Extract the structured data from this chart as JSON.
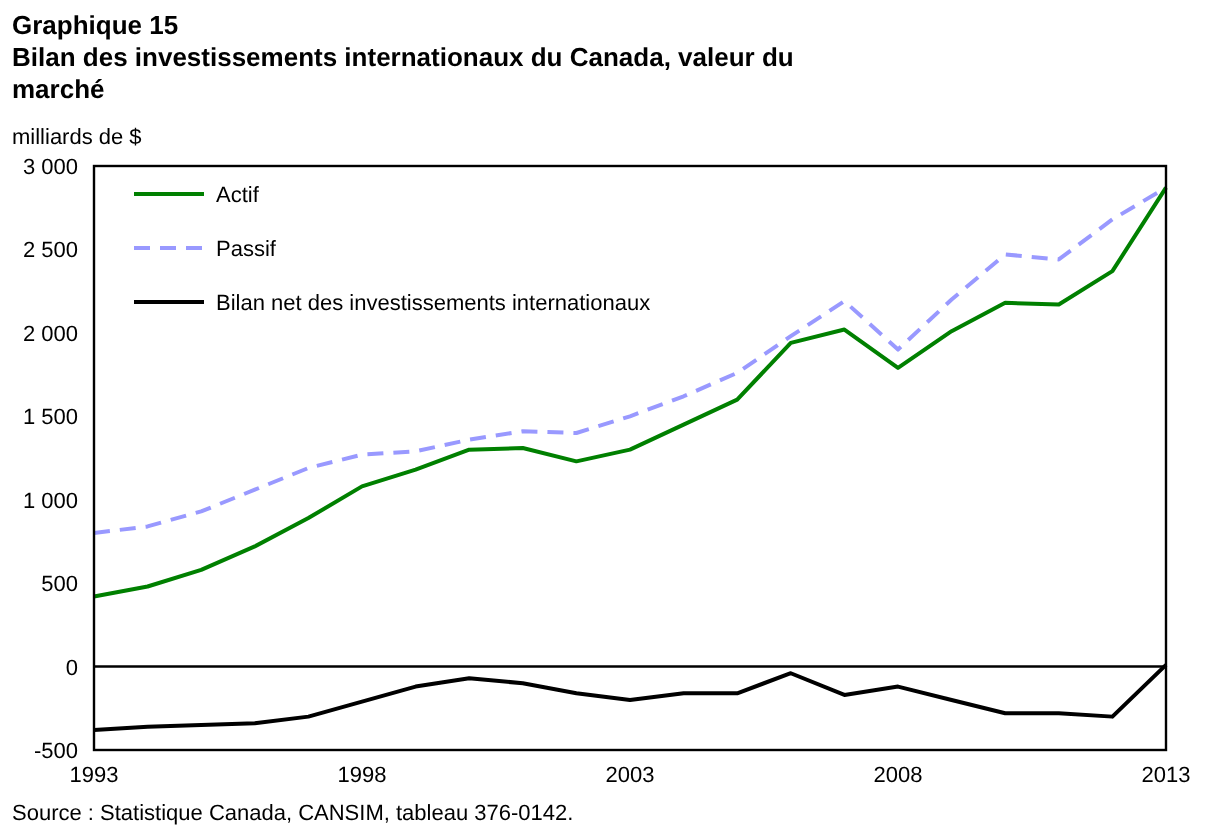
{
  "chart_data": {
    "type": "line",
    "title": "Graphique 15",
    "subtitle": "Bilan des investissements internationaux du Canada, valeur du marché",
    "ylabel": "milliards de $",
    "x": [
      1993,
      1994,
      1995,
      1996,
      1997,
      1998,
      1999,
      2000,
      2001,
      2002,
      2003,
      2004,
      2005,
      2006,
      2007,
      2008,
      2009,
      2010,
      2011,
      2012,
      2013
    ],
    "series": [
      {
        "name": "Actif",
        "color": "#008000",
        "line_style": "solid",
        "values": [
          420,
          480,
          580,
          720,
          890,
          1080,
          1180,
          1300,
          1310,
          1230,
          1300,
          1450,
          1600,
          1940,
          2020,
          1790,
          2010,
          2180,
          2170,
          2370,
          2870
        ]
      },
      {
        "name": "Passif",
        "color": "#9999ff",
        "line_style": "dashed",
        "values": [
          800,
          840,
          930,
          1060,
          1190,
          1270,
          1290,
          1360,
          1410,
          1400,
          1500,
          1620,
          1760,
          1980,
          2190,
          1900,
          2200,
          2470,
          2440,
          2680,
          2870
        ]
      },
      {
        "name": "Bilan net des investissements internationaux",
        "color": "#000000",
        "line_style": "solid",
        "values": [
          -380,
          -360,
          -350,
          -340,
          -300,
          -210,
          -120,
          -70,
          -100,
          -160,
          -200,
          -160,
          -160,
          -40,
          -170,
          -120,
          -200,
          -280,
          -280,
          -300,
          10
        ]
      }
    ],
    "xlim": [
      1993,
      2013
    ],
    "xticks": [
      1993,
      1998,
      2003,
      2008,
      2013
    ],
    "ylim": [
      -500,
      3000
    ],
    "yticks": [
      -500,
      0,
      500,
      {
        "value": 1000,
        "label": "1 000"
      },
      {
        "value": 1500,
        "label": "1 500"
      },
      {
        "value": 2000,
        "label": "2 000"
      },
      {
        "value": 2500,
        "label": "2 500"
      },
      {
        "value": 3000,
        "label": "3 000"
      }
    ],
    "ref_lines": [
      {
        "axis": "y",
        "value": 0,
        "color": "#000000"
      }
    ],
    "legend": "top left",
    "marker": "none",
    "grid": false,
    "annotations": [
      "Source : Statistique Canada, CANSIM, tableau 376-0142."
    ]
  }
}
